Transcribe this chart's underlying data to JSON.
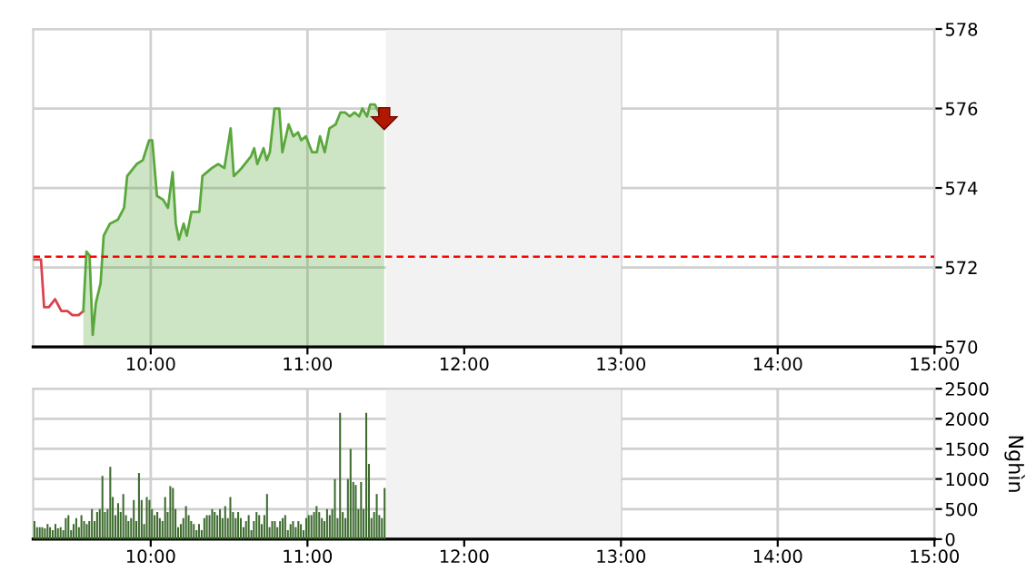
{
  "chart_data": [
    {
      "type": "line",
      "xlim": [
        9.25,
        15
      ],
      "xticks": [
        {
          "value": 10,
          "label": "10:00"
        },
        {
          "value": 11,
          "label": "11:00"
        },
        {
          "value": 12,
          "label": "12:00"
        },
        {
          "value": 13,
          "label": "13:00"
        },
        {
          "value": 14,
          "label": "14:00"
        },
        {
          "value": 15,
          "label": "15:00"
        }
      ],
      "ylim": [
        570,
        578
      ],
      "yticks": [
        570,
        572,
        574,
        576,
        578
      ],
      "grid": true,
      "legend": false,
      "ref_lines": [
        {
          "axis": "y",
          "value": 572.27,
          "color": "#ff0000",
          "line_style": "dashed"
        }
      ],
      "bands": [
        {
          "axis": "x",
          "from": 11.5,
          "to": 13.0,
          "color": "#f2f2f2"
        }
      ],
      "series": [
        {
          "type": "line",
          "color": "#d9434b",
          "x": [
            9.25,
            9.3,
            9.32,
            9.35,
            9.39,
            9.43,
            9.47,
            9.5,
            9.54,
            9.57
          ],
          "values": [
            572.2,
            572.2,
            571.0,
            571.0,
            571.2,
            570.9,
            570.9,
            570.8,
            570.8,
            570.9
          ]
        },
        {
          "type": "area",
          "color": "#5aa83c",
          "x": [
            9.57,
            9.59,
            9.61,
            9.63,
            9.65,
            9.68,
            9.7,
            9.74,
            9.79,
            9.83,
            9.85,
            9.91,
            9.95,
            9.99,
            10.01,
            10.04,
            10.08,
            10.11,
            10.14,
            10.16,
            10.18,
            10.21,
            10.23,
            10.26,
            10.31,
            10.33,
            10.39,
            10.43,
            10.47,
            10.51,
            10.53,
            10.58,
            10.64,
            10.66,
            10.68,
            10.72,
            10.74,
            10.76,
            10.79,
            10.82,
            10.84,
            10.88,
            10.91,
            10.94,
            10.96,
            10.99,
            11.03,
            11.06,
            11.08,
            11.11,
            11.14,
            11.18,
            11.21,
            11.24,
            11.27,
            11.3,
            11.33,
            11.35,
            11.38,
            11.4,
            11.43,
            11.47,
            11.49
          ],
          "values": [
            570.9,
            572.4,
            572.3,
            570.3,
            571.1,
            571.6,
            572.8,
            573.1,
            573.2,
            573.5,
            574.3,
            574.6,
            574.7,
            575.2,
            575.2,
            573.8,
            573.7,
            573.5,
            574.4,
            573.1,
            572.7,
            573.1,
            572.8,
            573.4,
            573.4,
            574.3,
            574.5,
            574.6,
            574.5,
            575.5,
            574.3,
            574.5,
            574.8,
            575.0,
            574.6,
            575.0,
            574.7,
            574.9,
            576.0,
            576.0,
            574.9,
            575.6,
            575.3,
            575.4,
            575.2,
            575.3,
            574.9,
            574.9,
            575.3,
            574.9,
            575.5,
            575.6,
            575.9,
            575.9,
            575.8,
            575.9,
            575.8,
            576.0,
            575.8,
            576.1,
            576.1,
            575.8,
            575.7
          ]
        }
      ]
    },
    {
      "type": "bar",
      "xlim": [
        9.25,
        15
      ],
      "xticks": [
        {
          "value": 10,
          "label": "10:00"
        },
        {
          "value": 11,
          "label": "11:00"
        },
        {
          "value": 12,
          "label": "12:00"
        },
        {
          "value": 13,
          "label": "13:00"
        },
        {
          "value": 14,
          "label": "14:00"
        },
        {
          "value": 15,
          "label": "15:00"
        }
      ],
      "ylim": [
        0,
        2500
      ],
      "yticks": [
        0,
        500,
        1000,
        1500,
        2000,
        2500
      ],
      "grid": true,
      "legend": false,
      "ylabel": "Nghìn",
      "bands": [
        {
          "axis": "x",
          "from": 11.5,
          "to": 13.0,
          "color": "#f2f2f2"
        }
      ],
      "series": [
        {
          "color": "#3d6b2e",
          "x": [
            9.258,
            9.275,
            9.292,
            9.308,
            9.325,
            9.342,
            9.358,
            9.375,
            9.392,
            9.408,
            9.425,
            9.442,
            9.458,
            9.475,
            9.492,
            9.508,
            9.525,
            9.542,
            9.558,
            9.575,
            9.592,
            9.608,
            9.625,
            9.642,
            9.658,
            9.675,
            9.692,
            9.708,
            9.725,
            9.742,
            9.758,
            9.775,
            9.792,
            9.808,
            9.825,
            9.842,
            9.858,
            9.875,
            9.892,
            9.908,
            9.925,
            9.942,
            9.958,
            9.975,
            9.992,
            10.008,
            10.025,
            10.042,
            10.058,
            10.075,
            10.092,
            10.108,
            10.125,
            10.142,
            10.158,
            10.175,
            10.192,
            10.208,
            10.225,
            10.242,
            10.258,
            10.275,
            10.292,
            10.308,
            10.325,
            10.342,
            10.358,
            10.375,
            10.392,
            10.408,
            10.425,
            10.442,
            10.458,
            10.475,
            10.492,
            10.508,
            10.525,
            10.542,
            10.558,
            10.575,
            10.592,
            10.608,
            10.625,
            10.642,
            10.658,
            10.675,
            10.692,
            10.708,
            10.725,
            10.742,
            10.758,
            10.775,
            10.792,
            10.808,
            10.825,
            10.842,
            10.858,
            10.875,
            10.892,
            10.908,
            10.925,
            10.942,
            10.958,
            10.975,
            10.992,
            11.008,
            11.025,
            11.042,
            11.058,
            11.075,
            11.092,
            11.108,
            11.125,
            11.142,
            11.158,
            11.175,
            11.192,
            11.208,
            11.225,
            11.242,
            11.258,
            11.275,
            11.292,
            11.308,
            11.325,
            11.342,
            11.358,
            11.375,
            11.392,
            11.408,
            11.425,
            11.442,
            11.458,
            11.475,
            11.492
          ],
          "values": [
            300,
            200,
            200,
            200,
            180,
            250,
            200,
            150,
            250,
            180,
            200,
            150,
            350,
            400,
            150,
            250,
            350,
            200,
            400,
            300,
            250,
            300,
            500,
            300,
            450,
            500,
            1050,
            450,
            500,
            1200,
            700,
            400,
            600,
            450,
            750,
            400,
            300,
            350,
            650,
            300,
            1100,
            650,
            250,
            700,
            650,
            500,
            400,
            450,
            350,
            300,
            700,
            450,
            880,
            850,
            500,
            200,
            250,
            350,
            550,
            400,
            300,
            250,
            150,
            250,
            150,
            350,
            400,
            400,
            500,
            450,
            400,
            500,
            350,
            550,
            350,
            700,
            450,
            350,
            450,
            350,
            200,
            300,
            400,
            150,
            300,
            450,
            400,
            250,
            400,
            750,
            200,
            300,
            300,
            200,
            300,
            350,
            400,
            150,
            250,
            300,
            200,
            300,
            250,
            150,
            350,
            400,
            400,
            450,
            550,
            450,
            350,
            300,
            500,
            400,
            500,
            1000,
            350,
            2100,
            450,
            350,
            1000,
            1500,
            950,
            900,
            500,
            950,
            500,
            2100,
            1250,
            350,
            450,
            750,
            400,
            350,
            850
          ]
        }
      ]
    }
  ]
}
